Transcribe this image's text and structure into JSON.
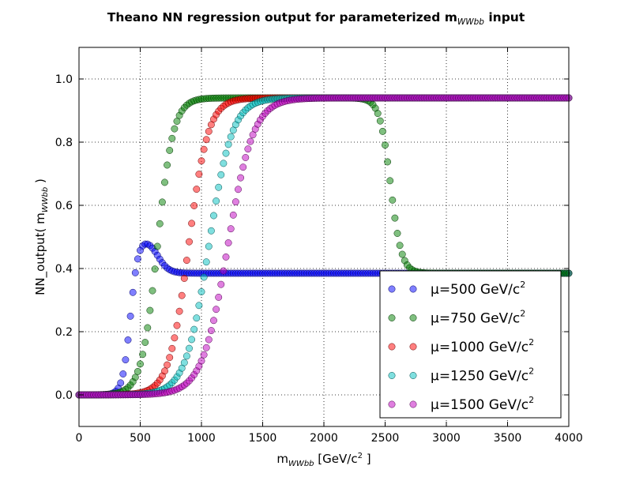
{
  "chart_data": {
    "type": "scatter",
    "title": "Theano NN regression output for parameterized m",
    "title_sub": "WWbb",
    "title_suffix": " input",
    "xlabel": "m",
    "xlabel_sub": "WWbb",
    "xlabel_suffix": " [GeV/c",
    "xlabel_sup": "2",
    "xlabel_end": " ]",
    "ylabel": "NN_output( m",
    "ylabel_sub": "WWbb",
    "ylabel_end": " )",
    "xlim": [
      0,
      4000
    ],
    "ylim": [
      -0.1,
      1.1
    ],
    "xticks": [
      "0",
      "500",
      "1000",
      "1500",
      "2000",
      "2500",
      "3000",
      "3500",
      "4000"
    ],
    "yticks": [
      "0.0",
      "0.2",
      "0.4",
      "0.6",
      "0.8",
      "1.0"
    ],
    "xtick_values": [
      0,
      500,
      1000,
      1500,
      2000,
      2500,
      3000,
      3500,
      4000
    ],
    "ytick_values": [
      0.0,
      0.2,
      0.4,
      0.6,
      0.8,
      1.0
    ],
    "grid": true,
    "grid_style": "dotted",
    "legend_placement": "lower-right",
    "marker_alpha": 0.5,
    "x_step": 20,
    "series": [
      {
        "name": "μ=500 GeV/c",
        "name_sup": "2",
        "color": "#0000ff",
        "edge": "#000066",
        "shape": "bump",
        "low": 0.0,
        "peak": 0.5,
        "high": 0.385,
        "rise_mid": 420,
        "rise_k": 32,
        "fall_mid": 640,
        "fall_k": 45
      },
      {
        "name": "μ=750 GeV/c",
        "name_sup": "2",
        "color": "#008000",
        "edge": "#003300",
        "shape": "plateau",
        "low": 0.0,
        "high": 0.94,
        "tail": 0.385,
        "rise_mid": 640,
        "rise_k": 65,
        "fall_mid": 2545,
        "fall_k": 45
      },
      {
        "name": "μ=1000 GeV/c",
        "name_sup": "2",
        "color": "#ff0000",
        "edge": "#660000",
        "shape": "sigmoid",
        "low": 0.0,
        "high": 0.94,
        "rise_mid": 895,
        "rise_k": 80
      },
      {
        "name": "μ=1250 GeV/c",
        "name_sup": "2",
        "color": "#00bfbf",
        "edge": "#004c4c",
        "shape": "sigmoid",
        "low": 0.0,
        "high": 0.94,
        "rise_mid": 1060,
        "rise_k": 95
      },
      {
        "name": "μ=1500 GeV/c",
        "name_sup": "2",
        "color": "#bf00bf",
        "edge": "#4c004c",
        "shape": "sigmoid",
        "low": 0.0,
        "high": 0.94,
        "rise_mid": 1215,
        "rise_k": 105
      }
    ]
  }
}
